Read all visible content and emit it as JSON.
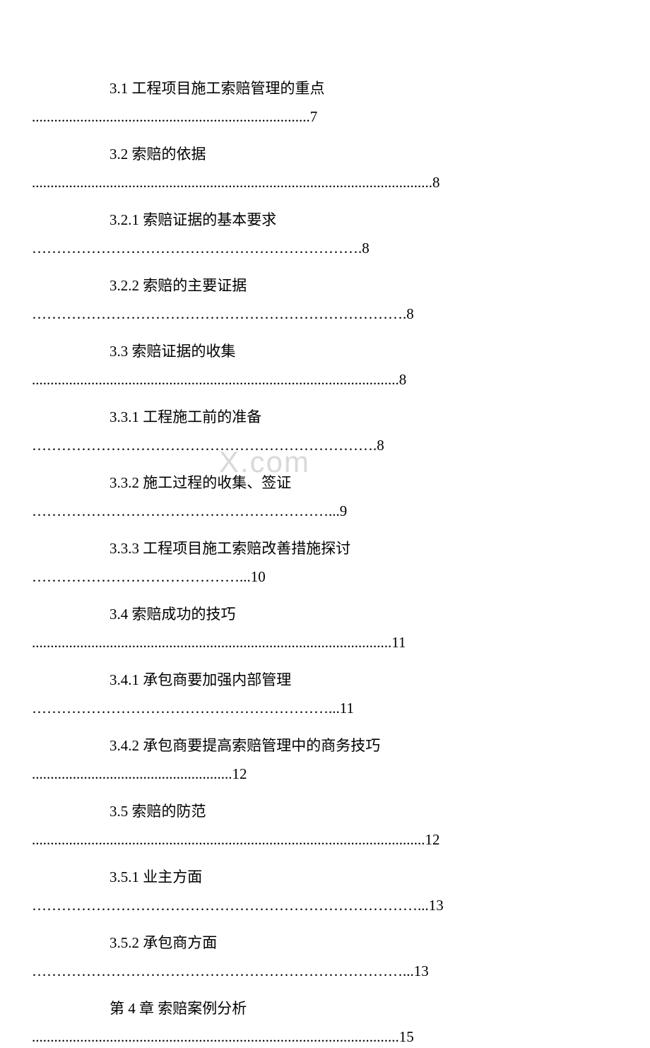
{
  "watermark": {
    "main": "X.com",
    "sub": ""
  },
  "toc": {
    "entries": [
      {
        "title": "3.1 工程项目施工索赔管理的重点",
        "leader": "...........................................................................7"
      },
      {
        "title": "3.2 索赔的依据",
        "leader": "............................................................................................................8"
      },
      {
        "title": "3.2.1 索赔证据的基本要求",
        "leader": "………………………………………………………….8"
      },
      {
        "title": "3.2.2 索赔的主要证据",
        "leader": "………………………………………………………………….8"
      },
      {
        "title": "3.3 索赔证据的收集",
        "leader": "...................................................................................................8"
      },
      {
        "title": "3.3.1 工程施工前的准备",
        "leader": "…………………………………………………………….8"
      },
      {
        "title": "3.3.2 施工过程的收集、签证",
        "leader": "……………………………………………………...9"
      },
      {
        "title": "3.3.3 工程项目施工索赔改善措施探讨",
        "leader": "……………………………………...10"
      },
      {
        "title": "3.4 索赔成功的技巧",
        "leader": ".................................................................................................11"
      },
      {
        "title": "3.4.1 承包商要加强内部管理",
        "leader": "……………………………………………………...11"
      },
      {
        "title": "3.4.2 承包商要提高索赔管理中的商务技巧",
        "leader": "......................................................12"
      },
      {
        "title": "3.5 索赔的防范",
        "leader": "..........................................................................................................12"
      },
      {
        "title": "3.5.1 业主方面",
        "leader": "……………………………………………………………………...13"
      },
      {
        "title": "3.5.2 承包商方面",
        "leader": "…………………………………………………………………...13"
      },
      {
        "title": "第 4 章    索赔案例分析",
        "leader": "...................................................................................................15"
      }
    ]
  }
}
